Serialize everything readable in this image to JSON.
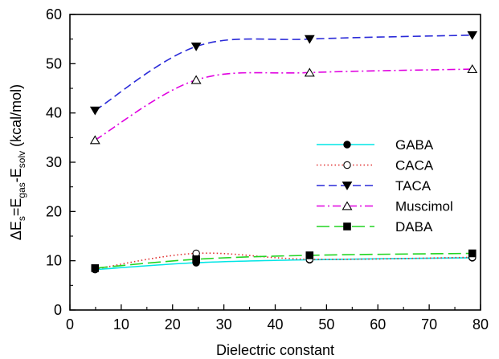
{
  "chart_data": {
    "type": "line",
    "title": "",
    "xlabel": "Dielectric constant",
    "ylabel": {
      "prefix": "ΔE",
      "sub1": "s",
      "mid1": "=E",
      "sub2": "gas",
      "mid2": "-E",
      "sub3": "solv",
      "suffix": " (kcal/mol)"
    },
    "xlim": [
      0,
      80
    ],
    "ylim": [
      0,
      60
    ],
    "xticks": [
      "0",
      "10",
      "20",
      "30",
      "40",
      "50",
      "60",
      "70",
      "80"
    ],
    "yticks": [
      "0",
      "10",
      "20",
      "30",
      "40",
      "50",
      "60"
    ],
    "x": [
      4.9,
      24.6,
      46.7,
      78.4
    ],
    "grid": false,
    "legend_position": "center-right",
    "series": [
      {
        "name": "GABA",
        "values": [
          8.2,
          9.6,
          10.2,
          10.6
        ],
        "color": "#00e5e5",
        "dash": "",
        "marker": "circle-filled"
      },
      {
        "name": "CACA",
        "values": [
          8.3,
          11.5,
          10.3,
          10.7
        ],
        "color": "#e03030",
        "dash": "1.5,3",
        "marker": "circle-open"
      },
      {
        "name": "TACA",
        "values": [
          40.5,
          53.5,
          55.0,
          55.8
        ],
        "color": "#2a2ad8",
        "dash": "10,5",
        "marker": "triangle-down-filled"
      },
      {
        "name": "Muscimol",
        "values": [
          34.5,
          46.7,
          48.2,
          48.9
        ],
        "color": "#e000e0",
        "dash": "10,4,2,4",
        "marker": "triangle-up-open"
      },
      {
        "name": "DABA",
        "values": [
          8.5,
          10.3,
          11.1,
          11.5
        ],
        "color": "#22d422",
        "dash": "16,6",
        "marker": "square-filled"
      }
    ]
  }
}
